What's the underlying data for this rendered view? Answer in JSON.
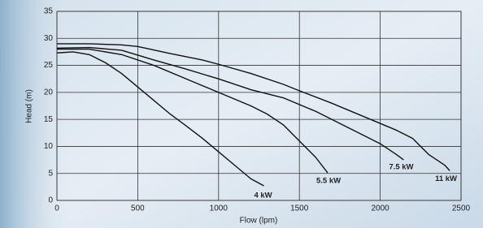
{
  "chart_data": {
    "type": "line",
    "x_label": "Flow (lpm)",
    "y_label": "Head (m)",
    "xlim": [
      0,
      2500
    ],
    "xticks": [
      0,
      500,
      1000,
      1500,
      2000,
      2500
    ],
    "ylim": [
      0,
      35
    ],
    "yticks": [
      0,
      5,
      10,
      15,
      20,
      25,
      30,
      35
    ],
    "grid": true,
    "series": [
      {
        "name": "4 kW",
        "color": "#111111",
        "x": [
          0,
          100,
          200,
          300,
          400,
          500,
          600,
          700,
          800,
          900,
          1000,
          1100,
          1200,
          1280
        ],
        "values": [
          27.3,
          27.5,
          27,
          25.5,
          23.5,
          21,
          18.5,
          16,
          13.8,
          11.5,
          9,
          6.5,
          4,
          2.7
        ]
      },
      {
        "name": "5.5 kW",
        "color": "#111111",
        "x": [
          0,
          200,
          400,
          600,
          800,
          1000,
          1200,
          1300,
          1400,
          1500,
          1600,
          1675
        ],
        "values": [
          28,
          28,
          27,
          25,
          22.5,
          20,
          17.5,
          16,
          14,
          11,
          8,
          5.1
        ]
      },
      {
        "name": "7.5 kW",
        "color": "#111111",
        "x": [
          0,
          200,
          400,
          600,
          800,
          1000,
          1200,
          1400,
          1600,
          1800,
          2000,
          2100,
          2145
        ],
        "values": [
          28.2,
          28.3,
          27.8,
          26,
          24.3,
          22.5,
          20.5,
          19,
          16.5,
          13.5,
          10.5,
          8.5,
          7.5
        ]
      },
      {
        "name": "11 kW",
        "color": "#111111",
        "x": [
          0,
          200,
          400,
          500,
          700,
          900,
          1000,
          1200,
          1400,
          1500,
          1700,
          1900,
          2100,
          2200,
          2300,
          2400,
          2430
        ],
        "values": [
          29,
          29,
          28.8,
          28.5,
          27.2,
          26,
          25.2,
          23.5,
          21.5,
          20.3,
          18,
          15.5,
          13,
          11.5,
          8.5,
          6.5,
          5.5
        ]
      }
    ]
  }
}
